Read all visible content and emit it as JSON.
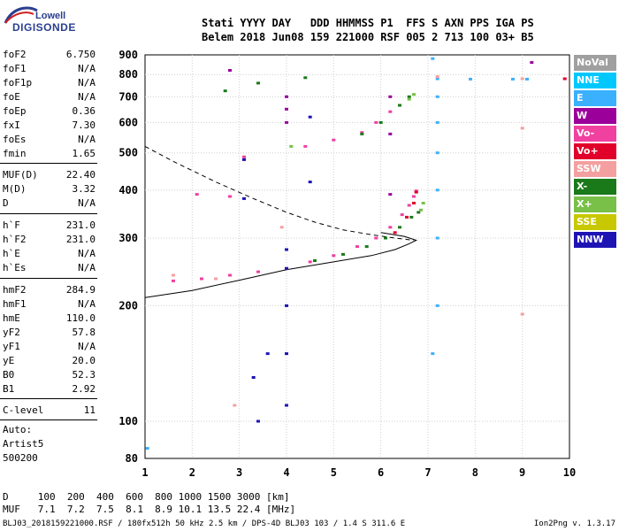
{
  "logo": {
    "line1": "Lowell",
    "line2": "DIGISONDE"
  },
  "header": {
    "line1": "Stati YYYY DAY   DDD HHMMSS P1  FFS S AXN PPS IGA PS",
    "line2": "Belem 2018 Jun08 159 221000 RSF 005 2 713 100 03+ B5"
  },
  "params": [
    {
      "k": "foF2",
      "v": "6.750"
    },
    {
      "k": "foF1",
      "v": "N/A"
    },
    {
      "k": "foF1p",
      "v": "N/A"
    },
    {
      "k": "foE",
      "v": "N/A"
    },
    {
      "k": "foEp",
      "v": "0.36"
    },
    {
      "k": "fxI",
      "v": "7.30"
    },
    {
      "k": "foEs",
      "v": "N/A"
    },
    {
      "k": "fmin",
      "v": "1.65"
    },
    {
      "k": "MUF(D)",
      "v": "22.40"
    },
    {
      "k": "M(D)",
      "v": "3.32"
    },
    {
      "k": "D",
      "v": "N/A"
    },
    {
      "k": "h`F",
      "v": "231.0"
    },
    {
      "k": "h`F2",
      "v": "231.0"
    },
    {
      "k": "h`E",
      "v": "N/A"
    },
    {
      "k": "h`Es",
      "v": "N/A"
    },
    {
      "k": "hmF2",
      "v": "284.9"
    },
    {
      "k": "hmF1",
      "v": "N/A"
    },
    {
      "k": "hmE",
      "v": "110.0"
    },
    {
      "k": "yF2",
      "v": "57.8"
    },
    {
      "k": "yF1",
      "v": "N/A"
    },
    {
      "k": "yE",
      "v": "20.0"
    },
    {
      "k": "B0",
      "v": "52.3"
    },
    {
      "k": "B1",
      "v": "2.92"
    },
    {
      "k": "C-level",
      "v": "11"
    }
  ],
  "auto": {
    "line1": "Auto:",
    "line2": "Artist5",
    "line3": "500200"
  },
  "legend": [
    {
      "label": "NoVal",
      "color": "#a0a0a0",
      "text": "#ffffff"
    },
    {
      "label": "NNE",
      "color": "#00c8ff",
      "text": "#ffffff"
    },
    {
      "label": "E",
      "color": "#3ab0ff",
      "text": "#ffffff"
    },
    {
      "label": "W",
      "color": "#9b009b",
      "text": "#ffffff"
    },
    {
      "label": "Vo-",
      "color": "#f040a0",
      "text": "#ffffff"
    },
    {
      "label": "Vo+",
      "color": "#e0002a",
      "text": "#ffffff"
    },
    {
      "label": "SSW",
      "color": "#f4a0a0",
      "text": "#ffffff"
    },
    {
      "label": "X-",
      "color": "#1a7a1a",
      "text": "#ffffff"
    },
    {
      "label": "X+",
      "color": "#78c048",
      "text": "#ffffff"
    },
    {
      "label": "SSE",
      "color": "#c8c800",
      "text": "#ffffff"
    },
    {
      "label": "NNW",
      "color": "#1e14b4",
      "text": "#ffffff"
    }
  ],
  "footer": {
    "line1": "D     100  200  400  600  800 1000 1500 3000 [km]",
    "line2": "MUF   7.1  7.2  7.5  8.1  8.9 10.1 13.5 22.4 [MHz]",
    "line3": "BLJ03_2018159221000.RSF / 180fx512h 50 kHz 2.5 km / DPS-4D BLJ03 103 / 1.4 S 311.6 E",
    "version": "Ion2Png v. 1.3.17"
  },
  "chart_data": {
    "type": "scatter",
    "xlim": [
      1,
      10
    ],
    "ylim": [
      80,
      900
    ],
    "x_ticks": [
      "1",
      "2",
      "3",
      "4",
      "5",
      "6",
      "7",
      "8",
      "9",
      "10"
    ],
    "y_ticks": [
      "80",
      "100",
      "200",
      "300",
      "400",
      "500",
      "600",
      "700",
      "800",
      "900"
    ],
    "grid": true,
    "series": [
      {
        "name": "Vo-",
        "color": "#f040a0",
        "points": [
          [
            1.6,
            232
          ],
          [
            2.2,
            235
          ],
          [
            2.8,
            240
          ],
          [
            3.4,
            245
          ],
          [
            4.0,
            250
          ],
          [
            4.5,
            260
          ],
          [
            5.0,
            270
          ],
          [
            5.5,
            285
          ],
          [
            5.9,
            300
          ],
          [
            6.2,
            320
          ],
          [
            6.45,
            345
          ],
          [
            6.6,
            365
          ],
          [
            6.7,
            385
          ],
          [
            6.75,
            398
          ],
          [
            3.1,
            488
          ],
          [
            4.4,
            520
          ],
          [
            5.0,
            540
          ],
          [
            5.6,
            565
          ],
          [
            5.9,
            600
          ],
          [
            6.2,
            640
          ],
          [
            2.1,
            390
          ],
          [
            2.8,
            385
          ]
        ]
      },
      {
        "name": "X-",
        "color": "#1a7a1a",
        "points": [
          [
            4.6,
            262
          ],
          [
            5.2,
            272
          ],
          [
            5.7,
            285
          ],
          [
            6.1,
            300
          ],
          [
            6.4,
            320
          ],
          [
            6.65,
            340
          ],
          [
            6.8,
            350
          ],
          [
            5.6,
            560
          ],
          [
            6.0,
            600
          ],
          [
            6.4,
            665
          ],
          [
            6.6,
            700
          ],
          [
            4.4,
            785
          ],
          [
            3.4,
            760
          ],
          [
            2.7,
            725
          ]
        ]
      },
      {
        "name": "X+",
        "color": "#78c048",
        "points": [
          [
            6.85,
            355
          ],
          [
            6.9,
            370
          ],
          [
            6.6,
            690
          ],
          [
            6.7,
            710
          ],
          [
            4.1,
            520
          ]
        ]
      },
      {
        "name": "Vo+",
        "color": "#e0002a",
        "points": [
          [
            6.3,
            310
          ],
          [
            6.55,
            340
          ],
          [
            6.7,
            370
          ],
          [
            6.75,
            395
          ],
          [
            9.9,
            780
          ]
        ]
      },
      {
        "name": "W",
        "color": "#9b009b",
        "points": [
          [
            4.0,
            600
          ],
          [
            4.0,
            650
          ],
          [
            4.0,
            700
          ],
          [
            6.2,
            700
          ],
          [
            6.2,
            560
          ],
          [
            6.2,
            390
          ],
          [
            2.8,
            820
          ],
          [
            9.2,
            860
          ]
        ]
      },
      {
        "name": "E",
        "color": "#3ab0ff",
        "points": [
          [
            7.1,
            880
          ],
          [
            7.2,
            780
          ],
          [
            7.2,
            700
          ],
          [
            7.2,
            600
          ],
          [
            7.2,
            500
          ],
          [
            7.2,
            400
          ],
          [
            7.2,
            300
          ],
          [
            7.2,
            200
          ],
          [
            7.1,
            150
          ],
          [
            8.8,
            778
          ],
          [
            9.1,
            778
          ],
          [
            7.9,
            778
          ],
          [
            1.05,
            85
          ]
        ]
      },
      {
        "name": "NNW",
        "color": "#1e14b4",
        "points": [
          [
            4.0,
            280
          ],
          [
            4.0,
            250
          ],
          [
            4.0,
            200
          ],
          [
            4.0,
            150
          ],
          [
            4.0,
            110
          ],
          [
            3.6,
            150
          ],
          [
            3.3,
            130
          ],
          [
            3.4,
            100
          ],
          [
            4.5,
            420
          ],
          [
            4.5,
            620
          ],
          [
            3.1,
            480
          ],
          [
            3.1,
            380
          ]
        ]
      },
      {
        "name": "SSW",
        "color": "#f4a0a0",
        "points": [
          [
            1.6,
            240
          ],
          [
            2.5,
            235
          ],
          [
            2.9,
            110
          ],
          [
            3.9,
            320
          ],
          [
            9.0,
            190
          ],
          [
            9.0,
            580
          ],
          [
            9.0,
            780
          ],
          [
            7.2,
            790
          ]
        ]
      }
    ],
    "model_curves": [
      {
        "style": "solid",
        "points": [
          [
            1,
            210
          ],
          [
            2,
            219
          ],
          [
            3,
            233
          ],
          [
            4,
            248
          ],
          [
            5,
            260
          ],
          [
            5.8,
            270
          ],
          [
            6.3,
            280
          ],
          [
            6.6,
            290
          ],
          [
            6.75,
            296
          ],
          [
            6.5,
            303
          ],
          [
            6.0,
            310
          ]
        ]
      },
      {
        "style": "dashed",
        "points": [
          [
            1,
            520
          ],
          [
            1.6,
            475
          ],
          [
            2.5,
            420
          ],
          [
            3.3,
            380
          ],
          [
            4.0,
            350
          ],
          [
            4.6,
            330
          ],
          [
            5.2,
            315
          ],
          [
            5.8,
            306
          ],
          [
            6.3,
            300
          ],
          [
            6.7,
            296
          ]
        ]
      }
    ]
  }
}
